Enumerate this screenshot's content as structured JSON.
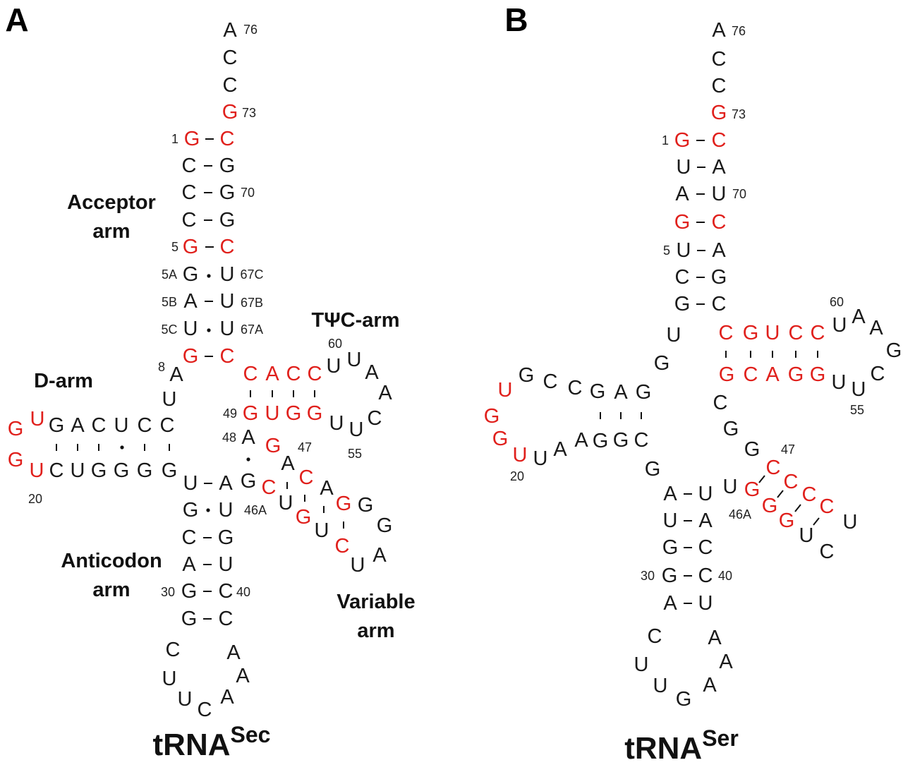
{
  "colors": {
    "black": "#1a1a1a",
    "red": "#e0201c"
  },
  "panels": [
    {
      "letter": "A",
      "title": "tRNA",
      "title_sup": "Sec",
      "labels": [
        {
          "id": "acceptor",
          "lines": [
            "Acceptor",
            "arm"
          ]
        },
        {
          "id": "tpsic",
          "lines": [
            "TΨC-arm"
          ]
        },
        {
          "id": "darm",
          "lines": [
            "D-arm"
          ]
        },
        {
          "id": "anticodon",
          "lines": [
            "Anticodon",
            "arm"
          ]
        },
        {
          "id": "variable",
          "lines": [
            "Variable",
            "arm"
          ]
        }
      ],
      "nucleotides": [
        {
          "b": "A",
          "red": false
        },
        {
          "b": "C",
          "red": false
        },
        {
          "b": "C",
          "red": false
        },
        {
          "b": "G",
          "red": true
        },
        {
          "b": "G",
          "red": true
        },
        {
          "b": "C",
          "red": true
        },
        {
          "b": "C",
          "red": false
        },
        {
          "b": "G",
          "red": false
        },
        {
          "b": "C",
          "red": false
        },
        {
          "b": "G",
          "red": false
        },
        {
          "b": "C",
          "red": false
        },
        {
          "b": "G",
          "red": false
        },
        {
          "b": "G",
          "red": true
        },
        {
          "b": "C",
          "red": true
        },
        {
          "b": "G",
          "red": false
        },
        {
          "b": "U",
          "red": false
        },
        {
          "b": "A",
          "red": false
        },
        {
          "b": "U",
          "red": false
        },
        {
          "b": "U",
          "red": false
        },
        {
          "b": "U",
          "red": false
        },
        {
          "b": "G",
          "red": true
        },
        {
          "b": "C",
          "red": true
        },
        {
          "b": "A",
          "red": false
        },
        {
          "b": "U",
          "red": false
        },
        {
          "b": "U",
          "red": true
        },
        {
          "b": "G",
          "red": false
        },
        {
          "b": "A",
          "red": false
        },
        {
          "b": "C",
          "red": false
        },
        {
          "b": "U",
          "red": false
        },
        {
          "b": "C",
          "red": false
        },
        {
          "b": "C",
          "red": false
        },
        {
          "b": "G",
          "red": true
        },
        {
          "b": "G",
          "red": true
        },
        {
          "b": "U",
          "red": true
        },
        {
          "b": "C",
          "red": false
        },
        {
          "b": "U",
          "red": false
        },
        {
          "b": "G",
          "red": false
        },
        {
          "b": "G",
          "red": false
        },
        {
          "b": "G",
          "red": false
        },
        {
          "b": "G",
          "red": false
        },
        {
          "b": "U",
          "red": false
        },
        {
          "b": "A",
          "red": false
        },
        {
          "b": "G",
          "red": false
        },
        {
          "b": "U",
          "red": false
        },
        {
          "b": "C",
          "red": false
        },
        {
          "b": "G",
          "red": false
        },
        {
          "b": "A",
          "red": false
        },
        {
          "b": "U",
          "red": false
        },
        {
          "b": "G",
          "red": false
        },
        {
          "b": "C",
          "red": false
        },
        {
          "b": "G",
          "red": false
        },
        {
          "b": "C",
          "red": false
        },
        {
          "b": "C",
          "red": false
        },
        {
          "b": "U",
          "red": false
        },
        {
          "b": "U",
          "red": false
        },
        {
          "b": "C",
          "red": false
        },
        {
          "b": "A",
          "red": false
        },
        {
          "b": "A",
          "red": false
        },
        {
          "b": "A",
          "red": false
        },
        {
          "b": "C",
          "red": true
        },
        {
          "b": "A",
          "red": true
        },
        {
          "b": "C",
          "red": true
        },
        {
          "b": "C",
          "red": true
        },
        {
          "b": "G",
          "red": true
        },
        {
          "b": "U",
          "red": true
        },
        {
          "b": "G",
          "red": true
        },
        {
          "b": "G",
          "red": true
        },
        {
          "b": "U",
          "red": false
        },
        {
          "b": "U",
          "red": false
        },
        {
          "b": "A",
          "red": false
        },
        {
          "b": "A",
          "red": false
        },
        {
          "b": "C",
          "red": false
        },
        {
          "b": "U",
          "red": false
        },
        {
          "b": "U",
          "red": false
        },
        {
          "b": "A",
          "red": false
        },
        {
          "b": "G",
          "red": false
        },
        {
          "b": "G",
          "red": true
        },
        {
          "b": "A",
          "red": false
        },
        {
          "b": "C",
          "red": true
        },
        {
          "b": "A",
          "red": false
        },
        {
          "b": "G",
          "red": true
        },
        {
          "b": "G",
          "red": false
        },
        {
          "b": "G",
          "red": false
        },
        {
          "b": "C",
          "red": true
        },
        {
          "b": "U",
          "red": false
        },
        {
          "b": "G",
          "red": true
        },
        {
          "b": "U",
          "red": false
        },
        {
          "b": "C",
          "red": true
        },
        {
          "b": "U",
          "red": false
        },
        {
          "b": "A",
          "red": false
        }
      ],
      "numbers": [
        "76",
        "73",
        "1",
        "70",
        "5",
        "5A",
        "67C",
        "5B",
        "67B",
        "5C",
        "67A",
        "8",
        "60",
        "49",
        "48",
        "47",
        "55",
        "20",
        "46A",
        "30",
        "40"
      ]
    },
    {
      "letter": "B",
      "title": "tRNA",
      "title_sup": "Ser",
      "nucleotides": [
        {
          "b": "A",
          "red": false
        },
        {
          "b": "C",
          "red": false
        },
        {
          "b": "C",
          "red": false
        },
        {
          "b": "G",
          "red": true
        },
        {
          "b": "G",
          "red": true
        },
        {
          "b": "C",
          "red": true
        },
        {
          "b": "U",
          "red": false
        },
        {
          "b": "A",
          "red": false
        },
        {
          "b": "A",
          "red": false
        },
        {
          "b": "U",
          "red": false
        },
        {
          "b": "G",
          "red": true
        },
        {
          "b": "C",
          "red": true
        },
        {
          "b": "U",
          "red": false
        },
        {
          "b": "A",
          "red": false
        },
        {
          "b": "C",
          "red": false
        },
        {
          "b": "G",
          "red": false
        },
        {
          "b": "G",
          "red": false
        },
        {
          "b": "C",
          "red": false
        },
        {
          "b": "U",
          "red": false
        },
        {
          "b": "G",
          "red": false
        },
        {
          "b": "C",
          "red": true
        },
        {
          "b": "G",
          "red": true
        },
        {
          "b": "U",
          "red": true
        },
        {
          "b": "C",
          "red": true
        },
        {
          "b": "C",
          "red": true
        },
        {
          "b": "U",
          "red": false
        },
        {
          "b": "A",
          "red": false
        },
        {
          "b": "A",
          "red": false
        },
        {
          "b": "G",
          "red": false
        },
        {
          "b": "C",
          "red": false
        },
        {
          "b": "U",
          "red": false
        },
        {
          "b": "U",
          "red": false
        },
        {
          "b": "G",
          "red": true
        },
        {
          "b": "C",
          "red": true
        },
        {
          "b": "A",
          "red": true
        },
        {
          "b": "G",
          "red": true
        },
        {
          "b": "G",
          "red": true
        },
        {
          "b": "C",
          "red": false
        },
        {
          "b": "G",
          "red": false
        },
        {
          "b": "G",
          "red": false
        },
        {
          "b": "G",
          "red": false
        },
        {
          "b": "A",
          "red": false
        },
        {
          "b": "G",
          "red": false
        },
        {
          "b": "C",
          "red": false
        },
        {
          "b": "C",
          "red": false
        },
        {
          "b": "G",
          "red": false
        },
        {
          "b": "U",
          "red": true
        },
        {
          "b": "G",
          "red": true
        },
        {
          "b": "G",
          "red": true
        },
        {
          "b": "U",
          "red": true
        },
        {
          "b": "U",
          "red": false
        },
        {
          "b": "A",
          "red": false
        },
        {
          "b": "A",
          "red": false
        },
        {
          "b": "G",
          "red": false
        },
        {
          "b": "G",
          "red": false
        },
        {
          "b": "C",
          "red": false
        },
        {
          "b": "G",
          "red": false
        },
        {
          "b": "A",
          "red": false
        },
        {
          "b": "U",
          "red": false
        },
        {
          "b": "U",
          "red": false
        },
        {
          "b": "A",
          "red": false
        },
        {
          "b": "G",
          "red": false
        },
        {
          "b": "C",
          "red": false
        },
        {
          "b": "G",
          "red": false
        },
        {
          "b": "C",
          "red": false
        },
        {
          "b": "A",
          "red": false
        },
        {
          "b": "U",
          "red": false
        },
        {
          "b": "C",
          "red": false
        },
        {
          "b": "U",
          "red": false
        },
        {
          "b": "U",
          "red": false
        },
        {
          "b": "G",
          "red": false
        },
        {
          "b": "A",
          "red": false
        },
        {
          "b": "A",
          "red": false
        },
        {
          "b": "A",
          "red": false
        },
        {
          "b": "U",
          "red": false
        },
        {
          "b": "C",
          "red": true
        },
        {
          "b": "C",
          "red": true
        },
        {
          "b": "C",
          "red": true
        },
        {
          "b": "C",
          "red": true
        },
        {
          "b": "G",
          "red": true
        },
        {
          "b": "G",
          "red": true
        },
        {
          "b": "G",
          "red": true
        },
        {
          "b": "U",
          "red": false
        },
        {
          "b": "U",
          "red": false
        },
        {
          "b": "C",
          "red": false
        }
      ],
      "numbers": [
        "76",
        "73",
        "1",
        "70",
        "5",
        "60",
        "55",
        "20",
        "47",
        "46A",
        "30",
        "40"
      ]
    }
  ]
}
